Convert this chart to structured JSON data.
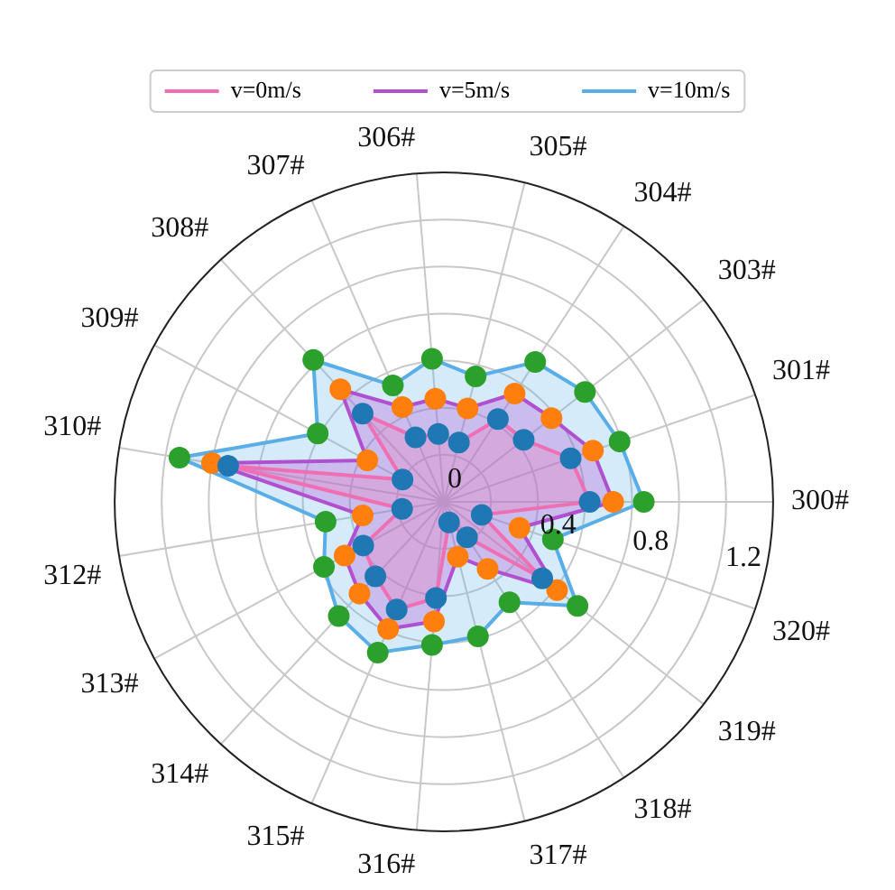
{
  "chart_data": {
    "type": "radar",
    "categories": [
      "305#",
      "304#",
      "303#",
      "301#",
      "300#",
      "320#",
      "319#",
      "318#",
      "317#",
      "316#",
      "315#",
      "314#",
      "313#",
      "312#",
      "310#",
      "309#",
      "308#",
      "307#",
      "306#"
    ],
    "series": [
      {
        "name": "v=0m/s",
        "color": "#ee6fb4",
        "colors": [
          "#1f77b4",
          "#1f77b4",
          "#1f77b4",
          "#1f77b4",
          "#1f77b4",
          "#1f77b4",
          "#1f77b4",
          "#1f77b4",
          "#1f77b4",
          "#1f77b4",
          "#1f77b4",
          "#1f77b4",
          "#1f77b4",
          "#1f77b4",
          "#1f77b4",
          "#1f77b4",
          "#1f77b4",
          "#1f77b4",
          "#1f77b4"
        ],
        "values": [
          0.26,
          0.42,
          0.43,
          0.57,
          0.62,
          0.17,
          0.53,
          0.18,
          0.09,
          0.41,
          0.5,
          0.43,
          0.39,
          0.18,
          0.93,
          0.2,
          0.51,
          0.3,
          0.29
        ]
      },
      {
        "name": "v=5m/s",
        "color": "#b04fd0",
        "colors": [
          "#ff7f0e",
          "#ff7f0e",
          "#ff7f0e",
          "#ff7f0e",
          "#ff7f0e",
          "#ff7f0e",
          "#ff7f0e",
          "#ff7f0e",
          "#ff7f0e",
          "#ff7f0e",
          "#ff7f0e",
          "#ff7f0e",
          "#ff7f0e",
          "#ff7f0e",
          "#ff7f0e",
          "#ff7f0e",
          "#ff7f0e",
          "#ff7f0e",
          "#ff7f0e"
        ],
        "values": [
          0.41,
          0.55,
          0.58,
          0.67,
          0.72,
          0.34,
          0.61,
          0.34,
          0.24,
          0.51,
          0.59,
          0.53,
          0.48,
          0.35,
          1.0,
          0.37,
          0.65,
          0.44,
          0.44
        ]
      },
      {
        "name": "v=10m/s",
        "color": "#5aaee8",
        "colors": [
          "#2ca02c",
          "#2ca02c",
          "#2ca02c",
          "#2ca02c",
          "#2ca02c",
          "#2ca02c",
          "#2ca02c",
          "#2ca02c",
          "#2ca02c",
          "#2ca02c",
          "#2ca02c",
          "#2ca02c",
          "#2ca02c",
          "#2ca02c",
          "#2ca02c",
          "#2ca02c",
          "#2ca02c",
          "#2ca02c",
          "#2ca02c"
        ],
        "values": [
          0.55,
          0.71,
          0.76,
          0.79,
          0.85,
          0.49,
          0.72,
          0.51,
          0.59,
          0.61,
          0.7,
          0.66,
          0.58,
          0.51,
          1.14,
          0.61,
          0.82,
          0.54,
          0.61
        ]
      }
    ],
    "ylim": [
      0,
      1.4
    ],
    "yticks": [
      0,
      0.4,
      0.8,
      1.2
    ],
    "grid": true,
    "legend": "top",
    "marker": "circle"
  }
}
